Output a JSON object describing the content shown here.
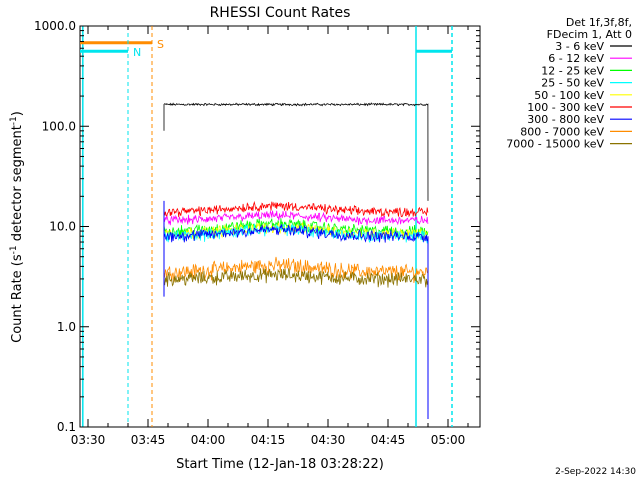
{
  "chart_data": {
    "type": "line",
    "title": "RHESSI Count Rates",
    "xlabel": "Start Time (12-Jan-18 03:28:22)",
    "ylabel_prefix": "Count Rate (s",
    "ylabel_sup": "-1",
    "ylabel_suffix": " detector segment",
    "ylabel_end": ")",
    "y_scale": "log",
    "ylim": [
      0.1,
      1000
    ],
    "xlim": [
      "03:28",
      "05:08"
    ],
    "x_ticks": [
      "03:30",
      "03:45",
      "04:00",
      "04:15",
      "04:30",
      "04:45",
      "05:00"
    ],
    "y_ticks": [
      "0.1",
      "1.0",
      "10.0",
      "100.0",
      "1000.0"
    ],
    "data_start": "03:49",
    "data_end": "04:55",
    "legend_header": [
      "Det 1f,3f,8f,",
      "FDecim 1, Att 0"
    ],
    "series": [
      {
        "name": "3 - 6 keV",
        "color": "#000000",
        "level": 165,
        "noise": 0.02,
        "bump": 0.0
      },
      {
        "name": "6 - 12 keV",
        "color": "#ff00ff",
        "level": 11.5,
        "noise": 0.08,
        "bump": 0.12
      },
      {
        "name": "12 - 25 keV",
        "color": "#00ff00",
        "level": 9.0,
        "noise": 0.1,
        "bump": 0.18
      },
      {
        "name": "25 - 50 keV",
        "color": "#00ffff",
        "level": 8.0,
        "noise": 0.1,
        "bump": 0.18
      },
      {
        "name": "50 - 100 keV",
        "color": "#ffff00",
        "level": 8.5,
        "noise": 0.1,
        "bump": 0.15
      },
      {
        "name": "100 - 300 keV",
        "color": "#ff0000",
        "level": 14.0,
        "noise": 0.08,
        "bump": 0.15
      },
      {
        "name": "300 - 800 keV",
        "color": "#0000ff",
        "level": 8.0,
        "noise": 0.1,
        "bump": 0.16
      },
      {
        "name": "800 - 7000 keV",
        "color": "#ff8c00",
        "level": 3.5,
        "noise": 0.14,
        "bump": 0.18
      },
      {
        "name": "7000 - 15000 keV",
        "color": "#8b7300",
        "level": 3.0,
        "noise": 0.12,
        "bump": 0.1
      }
    ],
    "annotations": [
      {
        "label": "S",
        "color": "#ff8c00",
        "time": "03:46",
        "bar_value": 680,
        "style": "dashed"
      },
      {
        "label": "N",
        "color": "#00e5ee",
        "time": "03:40",
        "bar_value": 560,
        "style": "dashed"
      }
    ],
    "vertical_lines": [
      {
        "time": "03:28.7",
        "color": "#00e5ee",
        "style": "solid"
      },
      {
        "time": "04:52",
        "color": "#00e5ee",
        "style": "solid"
      },
      {
        "time": "05:01",
        "color": "#00e5ee",
        "style": "dashed"
      }
    ],
    "right_bar": {
      "from": "04:52",
      "to": "05:01",
      "value": 560,
      "color": "#00e5ee"
    }
  },
  "footer": {
    "date": "2-Sep-2022 14:30"
  }
}
